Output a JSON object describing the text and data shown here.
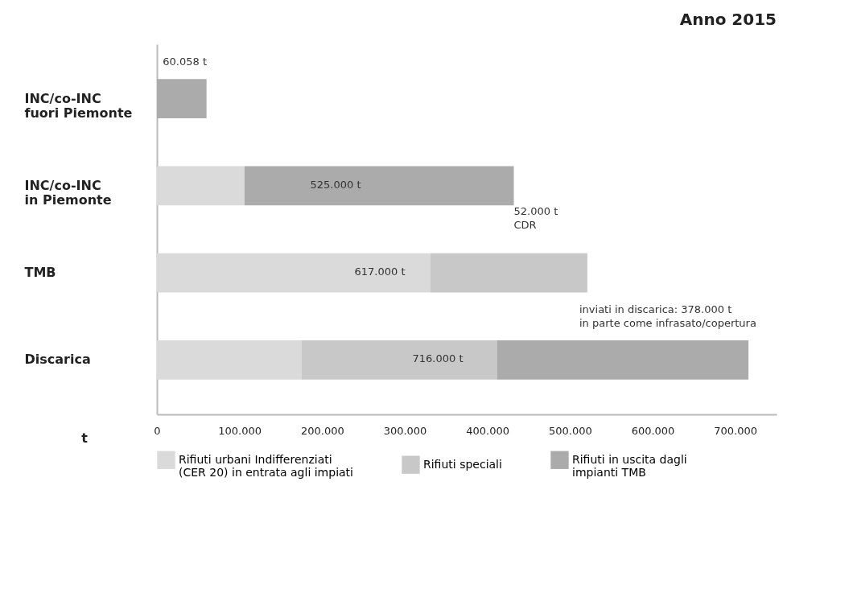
{
  "chart_data": {
    "type": "bar",
    "orientation": "horizontal",
    "stacked": true,
    "title": "Anno 2015",
    "xlabel": "t",
    "categories": [
      "INC/co-INC\nfuori Piemonte",
      "INC/co-INC\nin Piemonte",
      "TMB",
      "Discarica"
    ],
    "series": [
      {
        "name": "Rifiuti urbani Indifferenziati\n(CER 20) in entrata agli impiati",
        "color": "#dadada",
        "values": [
          null,
          106000,
          331000,
          175000
        ]
      },
      {
        "name": "Rifiuti speciali",
        "color": "#c8c8c8",
        "values": [
          null,
          null,
          190000,
          237000
        ]
      },
      {
        "name": "Rifiuti in uscita dagli\nimpianti TMB",
        "color": "#ababab",
        "values": [
          60058,
          326000,
          null,
          304000
        ]
      }
    ],
    "xlim": [
      0,
      750000
    ],
    "xticks": [
      0,
      {
        "value": 100000,
        "label": "100.000"
      },
      {
        "value": 200000,
        "label": "200.000"
      },
      {
        "value": 300000,
        "label": "300.000"
      },
      {
        "value": 400000,
        "label": "400.000"
      },
      {
        "value": 500000,
        "label": "500.000"
      },
      {
        "value": 600000,
        "label": "600.000"
      },
      {
        "value": 700000,
        "label": "700.000"
      }
    ],
    "grid": false,
    "legend": "bottom",
    "annotations": [
      "60.058 t",
      "525.000 t",
      {
        "text": "52.000 t\nCDR",
        "x": 432000,
        "y": "INC/co-INC\nin Piemonte"
      },
      "617.000 t",
      "inviati in discarica: 378.000 t\nin parte come infrasato/copertura",
      "716.000 t"
    ]
  }
}
